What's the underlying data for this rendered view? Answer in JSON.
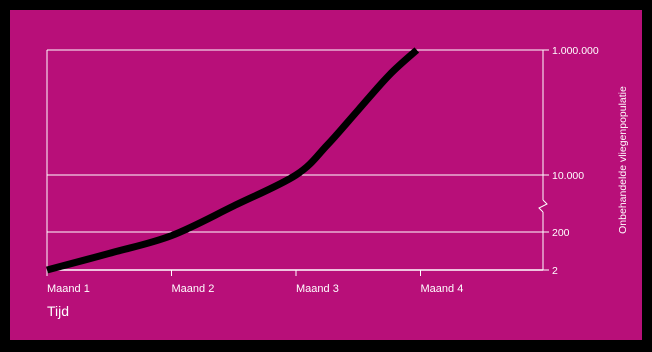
{
  "chart_data": {
    "type": "line",
    "xlabel": "Tijd",
    "ylabel": "Onbehandelde vliegenpopulatie",
    "x_tick_labels": [
      "Maand 1",
      "Maand 2",
      "Maand 3",
      "Maand 4"
    ],
    "y_tick_labels": [
      "2",
      "200",
      "10.000",
      "1.000.000"
    ],
    "y_gridlines_at": [
      "200",
      "10.000",
      "1.000.000"
    ],
    "y_axis_break": true,
    "grid": true,
    "series": [
      {
        "x": [
          1,
          1.5,
          2,
          2.5,
          3,
          3.25,
          3.5,
          3.75,
          3.97
        ],
        "y": [
          2,
          15,
          130,
          1200,
          10000,
          30000,
          110000,
          400000,
          1000000
        ]
      }
    ]
  },
  "colors": {
    "background": "#b80f79",
    "frame": "#000000",
    "curve": "#000000",
    "axes_and_text": "#ffffff"
  }
}
